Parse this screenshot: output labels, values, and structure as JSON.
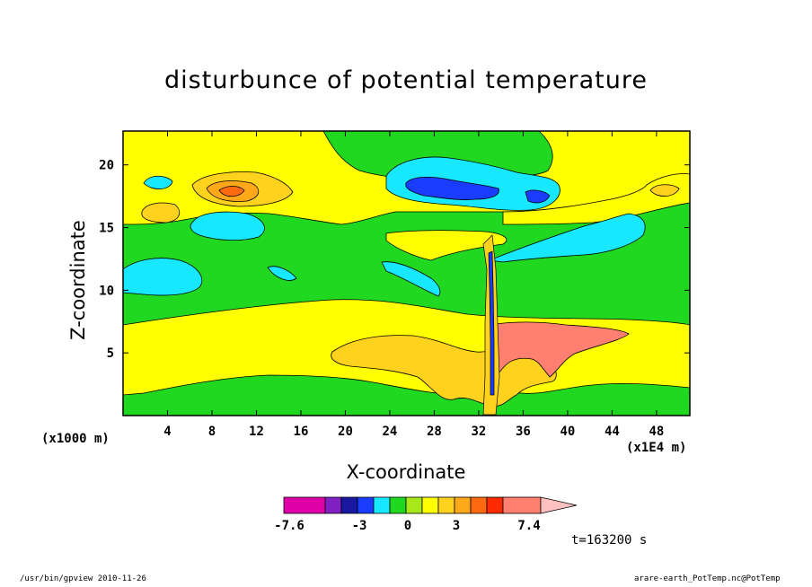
{
  "chart_data": {
    "type": "heatmap",
    "title": "disturbunce of potential temperature",
    "xlabel": "X-coordinate",
    "ylabel": "Z-coordinate",
    "x_unit_note": "(x1000 m)",
    "x_scale_note": "(x1E4 m)",
    "time_label": "t=163200 s",
    "x_ticks": [
      4,
      8,
      12,
      16,
      20,
      24,
      28,
      32,
      36,
      40,
      44,
      48
    ],
    "y_ticks": [
      5,
      10,
      15,
      20
    ],
    "xlim": [
      0,
      51
    ],
    "ylim": [
      0,
      22.7
    ],
    "colorbar": {
      "tick_labels": [
        "-7.6",
        "-3",
        "0",
        "3",
        "7.4"
      ],
      "levels": [
        -7.6,
        -6,
        -4.5,
        -3,
        -1.5,
        -0.75,
        0,
        0.75,
        1.5,
        2.25,
        3,
        3.75,
        7.4
      ],
      "colors": [
        "#e000a8",
        "#8020c0",
        "#1818a0",
        "#1a3cff",
        "#18e8ff",
        "#20d820",
        "#a6e81a",
        "#ffff00",
        "#ffd21e",
        "#ffa81a",
        "#ff6a10",
        "#ff2a00",
        "#ff8070",
        "#ffc0c0"
      ]
    },
    "fields": {
      "background_level": "0 to 0.75 (green)",
      "features": [
        {
          "desc": "yellow band",
          "x": [
            0,
            51
          ],
          "z": [
            1.5,
            8
          ]
        },
        {
          "desc": "orange patch",
          "x": [
            19,
            34
          ],
          "z": [
            1,
            7
          ]
        },
        {
          "desc": "salmon patch",
          "x": [
            33,
            45
          ],
          "z": [
            2,
            7
          ]
        },
        {
          "desc": "cyan blob",
          "x": [
            0,
            7
          ],
          "z": [
            9.5,
            12.5
          ]
        },
        {
          "desc": "cyan upper blob",
          "x": [
            25,
            40
          ],
          "z": [
            16,
            21
          ]
        },
        {
          "desc": "blue core",
          "x": [
            25,
            34
          ],
          "z": [
            17,
            19
          ]
        },
        {
          "desc": "orange/red upper left",
          "x": [
            6,
            15
          ],
          "z": [
            16.5,
            19.5
          ]
        }
      ]
    }
  },
  "foot": {
    "left": "/usr/bin/gpview  2010-11-26",
    "right": "arare-earth_PotTemp.nc@PotTemp"
  }
}
